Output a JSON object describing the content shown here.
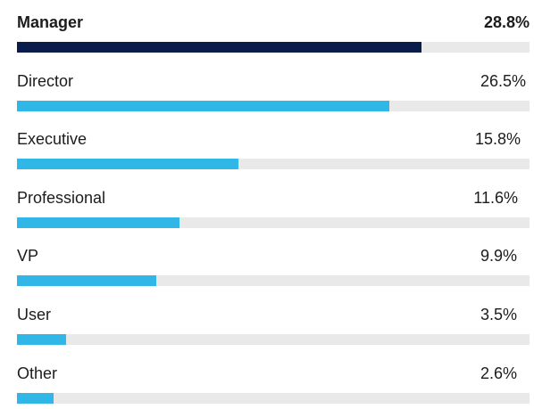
{
  "chart_data": {
    "type": "bar",
    "orientation": "horizontal",
    "categories": [
      "Manager",
      "Director",
      "Executive",
      "Professional",
      "VP",
      "User",
      "Other"
    ],
    "values": [
      28.8,
      26.5,
      15.8,
      11.6,
      9.9,
      3.5,
      2.6
    ],
    "value_labels": [
      "28.8%",
      "26.5%",
      "15.8%",
      "11.6%",
      "9.9%",
      "3.5%",
      "2.6%"
    ],
    "unit": "%",
    "highlighted_category": "Manager",
    "title": "",
    "xlabel": "",
    "ylabel": "",
    "grid": false,
    "legend": "none",
    "colors": {
      "highlight_bar": "#0a1d4a",
      "bar": "#30b7e8",
      "track": "#e9e9ea",
      "text": "#1c1c1c"
    }
  }
}
